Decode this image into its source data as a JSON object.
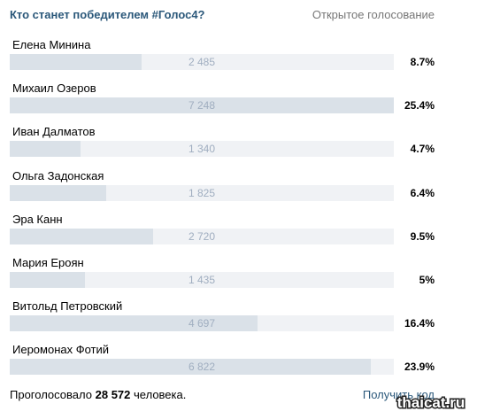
{
  "poll": {
    "title": "Кто станет победителем #Голос4?",
    "type_label": "Открытое голосование",
    "options": [
      {
        "name": "Елена Минина",
        "count": "2 485",
        "percent": "8.7%",
        "fraction": 0.087
      },
      {
        "name": "Михаил Озеров",
        "count": "7 248",
        "percent": "25.4%",
        "fraction": 0.254
      },
      {
        "name": "Иван Далматов",
        "count": "1 340",
        "percent": "4.7%",
        "fraction": 0.047
      },
      {
        "name": "Ольга Задонская",
        "count": "1 825",
        "percent": "6.4%",
        "fraction": 0.064
      },
      {
        "name": "Эра Канн",
        "count": "2 720",
        "percent": "9.5%",
        "fraction": 0.095
      },
      {
        "name": "Мария Ероян",
        "count": "1 435",
        "percent": "5%",
        "fraction": 0.05
      },
      {
        "name": "Витольд Петровский",
        "count": "4 697",
        "percent": "16.4%",
        "fraction": 0.164
      },
      {
        "name": "Иеромонах Фотий",
        "count": "6 822",
        "percent": "23.9%",
        "fraction": 0.239
      }
    ],
    "max_fraction": 0.254
  },
  "footer": {
    "voted_prefix": "Проголосовало",
    "voted_count": "28 572",
    "voted_suffix": "человека.",
    "get_code_label": "Получить код"
  },
  "watermark": {
    "text": "thaicat.ru"
  }
}
